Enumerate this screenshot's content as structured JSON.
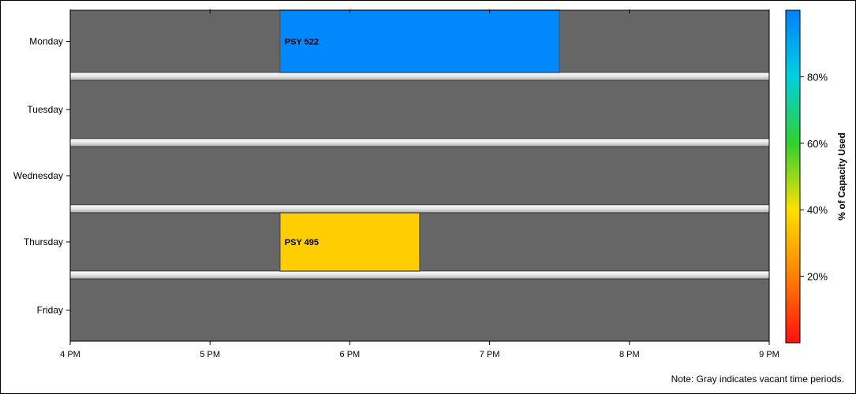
{
  "chart_data": {
    "type": "heatmap",
    "categories": [
      "Monday",
      "Tuesday",
      "Wednesday",
      "Thursday",
      "Friday"
    ],
    "x_ticks": [
      "4 PM",
      "5 PM",
      "6 PM",
      "7 PM",
      "8 PM",
      "9 PM"
    ],
    "xlim": [
      "4 PM",
      "9 PM"
    ],
    "bars": [
      {
        "day": "Monday",
        "label": "PSY 522",
        "start": "5:30 PM",
        "end": "7:30 PM",
        "capacity_used_pct": 98
      },
      {
        "day": "Thursday",
        "label": "PSY 495",
        "start": "5:30 PM",
        "end": "6:30 PM",
        "capacity_used_pct": 36
      }
    ],
    "vacant_color": "#666666",
    "colorbar": {
      "label": "% of Capacity Used",
      "ticks": [
        "20%",
        "40%",
        "60%",
        "80%"
      ],
      "range_pct": [
        0,
        100
      ],
      "colors": [
        "#ff1010",
        "#ff8000",
        "#ffe000",
        "#30d030",
        "#00d0e0",
        "#0080ff"
      ]
    },
    "grid": false,
    "note": "Note: Gray indicates vacant time periods."
  }
}
